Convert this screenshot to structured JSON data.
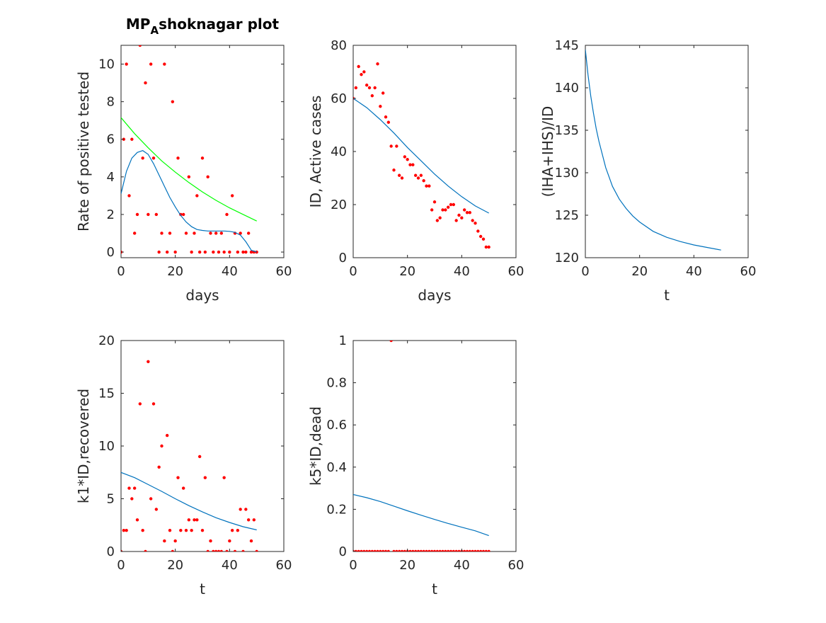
{
  "colors": {
    "model": "#0072BD",
    "data": "#FF0000",
    "fit": "#00FF00",
    "axis": "#262626"
  },
  "chart_data": [
    {
      "type": "scatter",
      "title": "MPₐshoknagar plot",
      "title_main": "MP",
      "title_sub": "A",
      "title_rest": "shoknagar plot",
      "xlabel": "days",
      "ylabel": "Rate of positive tested",
      "xlim": [
        0,
        60
      ],
      "ylim": [
        -0.3,
        11
      ],
      "xticks": [
        0,
        20,
        40,
        60
      ],
      "yticks": [
        0,
        2,
        4,
        6,
        8,
        10
      ],
      "grid": false,
      "series": [
        {
          "kind": "points",
          "color": "data",
          "x": [
            0,
            1,
            2,
            3,
            4,
            5,
            6,
            7,
            8,
            9,
            10,
            11,
            12,
            13,
            14,
            15,
            16,
            17,
            18,
            19,
            20,
            21,
            22,
            23,
            24,
            25,
            26,
            27,
            28,
            29,
            30,
            31,
            32,
            33,
            34,
            35,
            36,
            37,
            38,
            39,
            40,
            41,
            42,
            43,
            44,
            45,
            46,
            47,
            48,
            49,
            50
          ],
          "y": [
            0,
            6,
            10,
            3,
            6,
            1,
            2,
            11,
            5,
            9,
            2,
            10,
            5,
            2,
            0,
            1,
            10,
            0,
            1,
            8,
            0,
            5,
            2,
            2,
            1,
            4,
            0,
            1,
            3,
            0,
            5,
            0,
            4,
            1,
            0,
            1,
            0,
            1,
            0,
            2,
            0,
            3,
            1,
            0,
            1,
            0,
            0,
            1,
            0,
            0,
            0
          ]
        },
        {
          "kind": "line",
          "color": "model",
          "x": [
            0,
            2,
            4,
            6,
            8,
            10,
            12,
            14,
            16,
            18,
            20,
            22,
            24,
            26,
            28,
            30,
            32,
            34,
            36,
            38,
            40,
            42,
            44,
            46,
            48,
            50
          ],
          "y": [
            3.1,
            4.3,
            5.0,
            5.3,
            5.4,
            5.2,
            4.7,
            4.1,
            3.5,
            2.9,
            2.4,
            1.95,
            1.6,
            1.35,
            1.2,
            1.15,
            1.12,
            1.12,
            1.12,
            1.12,
            1.1,
            1.05,
            0.9,
            0.55,
            0.1,
            0
          ]
        },
        {
          "kind": "line",
          "color": "fit",
          "x": [
            0,
            5,
            10,
            15,
            20,
            25,
            30,
            35,
            40,
            45,
            50
          ],
          "y": [
            7.15,
            6.3,
            5.55,
            4.85,
            4.25,
            3.7,
            3.2,
            2.75,
            2.35,
            2.0,
            1.65
          ]
        }
      ]
    },
    {
      "type": "scatter",
      "xlabel": "days",
      "ylabel": "ID, Active cases",
      "xlim": [
        0,
        60
      ],
      "ylim": [
        0,
        80
      ],
      "xticks": [
        0,
        20,
        40,
        60
      ],
      "yticks": [
        0,
        20,
        40,
        60,
        80
      ],
      "grid": false,
      "series": [
        {
          "kind": "points",
          "color": "data",
          "x": [
            0,
            1,
            2,
            3,
            4,
            5,
            6,
            7,
            8,
            9,
            10,
            11,
            12,
            13,
            14,
            15,
            16,
            17,
            18,
            19,
            20,
            21,
            22,
            23,
            24,
            25,
            26,
            27,
            28,
            29,
            30,
            31,
            32,
            33,
            34,
            35,
            36,
            37,
            38,
            39,
            40,
            41,
            42,
            43,
            44,
            45,
            46,
            47,
            48,
            49,
            50
          ],
          "y": [
            60,
            64,
            72,
            69,
            70,
            65,
            64,
            61,
            64,
            73,
            57,
            62,
            53,
            51,
            42,
            33,
            42,
            31,
            30,
            38,
            37,
            35,
            35,
            31,
            30,
            31,
            29,
            27,
            27,
            18,
            21,
            14,
            15,
            18,
            18,
            19,
            20,
            20,
            14,
            16,
            15,
            18,
            17,
            17,
            14,
            13,
            10,
            8,
            7,
            4,
            4
          ]
        },
        {
          "kind": "line",
          "color": "model",
          "x": [
            0,
            5,
            10,
            15,
            20,
            25,
            30,
            35,
            40,
            45,
            50
          ],
          "y": [
            60,
            56.5,
            52,
            47,
            41.5,
            36.5,
            31.5,
            27,
            23,
            19.5,
            16.8
          ]
        }
      ]
    },
    {
      "type": "line",
      "xlabel": "t",
      "ylabel": "(IHA+IHS)/ID",
      "xlim": [
        0,
        60
      ],
      "ylim": [
        120,
        145
      ],
      "xticks": [
        0,
        20,
        40,
        60
      ],
      "yticks": [
        120,
        125,
        130,
        135,
        140,
        145
      ],
      "grid": false,
      "series": [
        {
          "kind": "line",
          "color": "model",
          "x": [
            0,
            1,
            2,
            3,
            4,
            5,
            7.5,
            10,
            12.5,
            15,
            17.5,
            20,
            25,
            30,
            35,
            40,
            45,
            50
          ],
          "y": [
            144.5,
            141.5,
            139,
            137,
            135.2,
            133.7,
            130.6,
            128.4,
            126.9,
            125.8,
            124.9,
            124.2,
            123.1,
            122.4,
            121.9,
            121.5,
            121.2,
            120.9
          ]
        }
      ]
    },
    {
      "type": "scatter",
      "xlabel": "t",
      "ylabel": "k1*ID,recovered",
      "xlim": [
        0,
        60
      ],
      "ylim": [
        0,
        20
      ],
      "xticks": [
        0,
        20,
        40,
        60
      ],
      "yticks": [
        0,
        5,
        10,
        15,
        20
      ],
      "grid": false,
      "series": [
        {
          "kind": "points",
          "color": "data",
          "x": [
            0,
            1,
            2,
            3,
            4,
            5,
            6,
            7,
            8,
            9,
            10,
            11,
            12,
            13,
            14,
            15,
            16,
            17,
            18,
            19,
            20,
            21,
            22,
            23,
            24,
            25,
            26,
            27,
            28,
            29,
            30,
            31,
            32,
            33,
            34,
            35,
            36,
            37,
            38,
            39,
            40,
            41,
            42,
            43,
            44,
            45,
            46,
            47,
            48,
            49,
            50
          ],
          "y": [
            0,
            2,
            2,
            6,
            5,
            6,
            3,
            14,
            2,
            0,
            18,
            5,
            14,
            4,
            8,
            10,
            1,
            11,
            2,
            0,
            1,
            7,
            2,
            6,
            2,
            3,
            2,
            3,
            3,
            9,
            2,
            7,
            0,
            1,
            0,
            0,
            0,
            0,
            7,
            0,
            1,
            2,
            0,
            2,
            4,
            0,
            4,
            3,
            1,
            3,
            0
          ]
        },
        {
          "kind": "line",
          "color": "model",
          "x": [
            0,
            5,
            10,
            15,
            20,
            25,
            30,
            35,
            40,
            45,
            50
          ],
          "y": [
            7.5,
            7.0,
            6.35,
            5.7,
            5.0,
            4.35,
            3.75,
            3.2,
            2.75,
            2.35,
            2.05
          ]
        }
      ]
    },
    {
      "type": "scatter",
      "xlabel": "t",
      "ylabel": "k5*ID,dead",
      "xlim": [
        0,
        60
      ],
      "ylim": [
        0,
        1
      ],
      "xticks": [
        0,
        20,
        40,
        60
      ],
      "yticks": [
        0,
        0.2,
        0.4,
        0.6,
        0.8,
        1
      ],
      "grid": false,
      "series": [
        {
          "kind": "points",
          "color": "data",
          "x": [
            0,
            1,
            2,
            3,
            4,
            5,
            6,
            7,
            8,
            9,
            10,
            11,
            12,
            13,
            14,
            15,
            16,
            17,
            18,
            19,
            20,
            21,
            22,
            23,
            24,
            25,
            26,
            27,
            28,
            29,
            30,
            31,
            32,
            33,
            34,
            35,
            36,
            37,
            38,
            39,
            40,
            41,
            42,
            43,
            44,
            45,
            46,
            47,
            48,
            49,
            50
          ],
          "y": [
            0,
            0,
            0,
            0,
            0,
            0,
            0,
            0,
            0,
            0,
            0,
            0,
            0,
            0,
            1,
            0,
            0,
            0,
            0,
            0,
            0,
            0,
            0,
            0,
            0,
            0,
            0,
            0,
            0,
            0,
            0,
            0,
            0,
            0,
            0,
            0,
            0,
            0,
            0,
            0,
            0,
            0,
            0,
            0,
            0,
            0,
            0,
            0,
            0,
            0,
            0
          ]
        },
        {
          "kind": "line",
          "color": "model",
          "x": [
            0,
            5,
            10,
            15,
            20,
            25,
            30,
            35,
            40,
            45,
            50
          ],
          "y": [
            0.27,
            0.255,
            0.237,
            0.215,
            0.193,
            0.172,
            0.152,
            0.133,
            0.115,
            0.098,
            0.075
          ]
        }
      ]
    }
  ]
}
